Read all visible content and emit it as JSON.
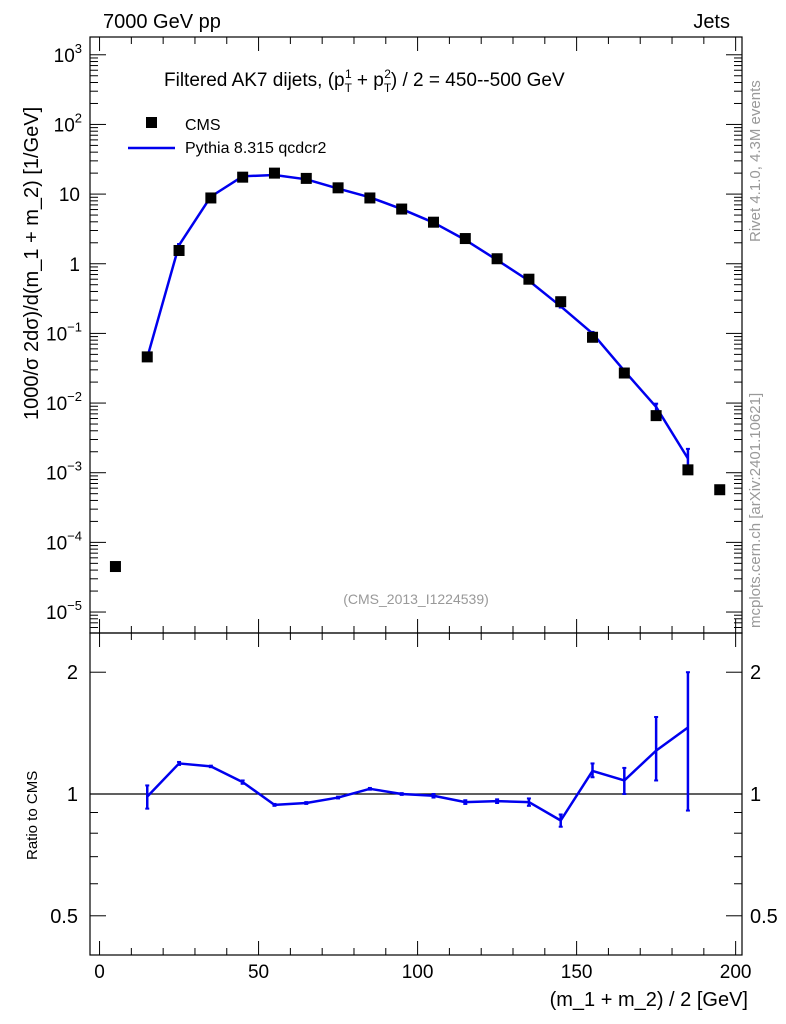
{
  "header": {
    "left": "7000 GeV pp",
    "right": "Jets",
    "side_top": "Rivet 4.1.0,  4.3M events",
    "side_bottom": "mcplots.cern.ch [arXiv:2401.10621]"
  },
  "colors": {
    "mc": "#0000ee",
    "data": "#000000",
    "watermark": "#999999"
  },
  "chart_data": [
    {
      "type": "scatter",
      "title": "Filtered AK7 dijets, (p_T^1 + p_T^2) / 2 = 450--500 GeV",
      "title_parts": {
        "prefix": "Filtered AK7 dijets, (p",
        "sub1": "T",
        "sup1": "1",
        "plus": " + p",
        "sub2": "T",
        "sup2": "2",
        "suffix": ") / 2 = 450--500 GeV"
      },
      "ylabel": "1000/σ   2dσ)/d(m_1 + m_2) [1/GeV]",
      "yscale": "log",
      "ylim": [
        5e-06,
        1800
      ],
      "xlim": [
        -3,
        202
      ],
      "yticks": [
        {
          "v": 1e-05,
          "label": "10",
          "exp": "−5"
        },
        {
          "v": 0.0001,
          "label": "10",
          "exp": "−4"
        },
        {
          "v": 0.001,
          "label": "10",
          "exp": "−3"
        },
        {
          "v": 0.01,
          "label": "10",
          "exp": "−2"
        },
        {
          "v": 0.1,
          "label": "10",
          "exp": "−1"
        },
        {
          "v": 1,
          "label": "1",
          "exp": ""
        },
        {
          "v": 10,
          "label": "10",
          "exp": ""
        },
        {
          "v": 100,
          "label": "10",
          "exp": "2"
        },
        {
          "v": 1000,
          "label": "10",
          "exp": "3"
        }
      ],
      "watermark": "(CMS_2013_I1224539)",
      "legend": [
        {
          "name": "CMS",
          "style": "marker"
        },
        {
          "name": "Pythia 8.315 qcdcr2",
          "style": "line"
        }
      ],
      "series": [
        {
          "name": "CMS",
          "x": [
            5,
            15,
            25,
            35,
            45,
            55,
            65,
            75,
            85,
            95,
            105,
            115,
            125,
            135,
            145,
            155,
            165,
            175,
            185,
            195
          ],
          "y": [
            4.5e-05,
            0.046,
            1.55,
            8.8,
            17.5,
            20.0,
            16.8,
            12.3,
            8.8,
            6.1,
            3.95,
            2.3,
            1.18,
            0.6,
            0.285,
            0.088,
            0.027,
            0.0066,
            0.0011,
            0.00057
          ]
        },
        {
          "name": "Pythia 8.315 qcdcr2",
          "x": [
            15,
            25,
            35,
            45,
            55,
            65,
            75,
            85,
            95,
            105,
            115,
            125,
            135,
            145,
            155,
            165,
            175,
            185
          ],
          "y": [
            0.045,
            1.85,
            9.2,
            18.0,
            18.8,
            16.3,
            12.0,
            9.0,
            6.1,
            3.9,
            2.2,
            1.13,
            0.57,
            0.245,
            0.1,
            0.029,
            0.0088,
            0.0016
          ],
          "err_lo": [
            0.042,
            1.78,
            9.0,
            17.8,
            18.6,
            16.1,
            11.9,
            8.9,
            6.0,
            3.85,
            2.15,
            1.1,
            0.55,
            0.235,
            0.095,
            0.027,
            0.0072,
            0.001
          ],
          "err_hi": [
            0.048,
            1.92,
            9.4,
            18.2,
            19.0,
            16.5,
            12.1,
            9.1,
            6.2,
            3.95,
            2.25,
            1.16,
            0.59,
            0.255,
            0.105,
            0.031,
            0.0098,
            0.0022
          ]
        }
      ]
    },
    {
      "type": "line",
      "ylabel": "Ratio to CMS",
      "xlabel": "(m_1 + m_2) / 2 [GeV]",
      "yscale": "log",
      "ylim": [
        0.4,
        2.5
      ],
      "xlim": [
        -3,
        202
      ],
      "yticks": [
        {
          "v": 0.5,
          "label": "0.5"
        },
        {
          "v": 1,
          "label": "1"
        },
        {
          "v": 2,
          "label": "2"
        }
      ],
      "xticks": [
        0,
        50,
        100,
        150,
        200
      ],
      "reference_line": 1,
      "series": [
        {
          "name": "Pythia 8.315 qcdcr2",
          "x": [
            15,
            25,
            35,
            45,
            55,
            65,
            75,
            85,
            95,
            105,
            115,
            125,
            135,
            145,
            155,
            165,
            175,
            185
          ],
          "y": [
            0.985,
            1.19,
            1.17,
            1.07,
            0.94,
            0.95,
            0.98,
            1.03,
            1.0,
            0.99,
            0.955,
            0.96,
            0.955,
            0.86,
            1.14,
            1.08,
            1.28,
            1.46
          ],
          "err_lo": [
            0.92,
            1.18,
            1.165,
            1.06,
            0.935,
            0.945,
            0.975,
            1.025,
            0.995,
            0.98,
            0.945,
            0.95,
            0.935,
            0.83,
            1.1,
            1.0,
            1.08,
            0.91
          ],
          "err_hi": [
            1.05,
            1.2,
            1.175,
            1.08,
            0.945,
            0.955,
            0.985,
            1.035,
            1.005,
            1.0,
            0.965,
            0.97,
            0.975,
            0.89,
            1.19,
            1.16,
            1.55,
            2.0
          ]
        }
      ]
    }
  ]
}
